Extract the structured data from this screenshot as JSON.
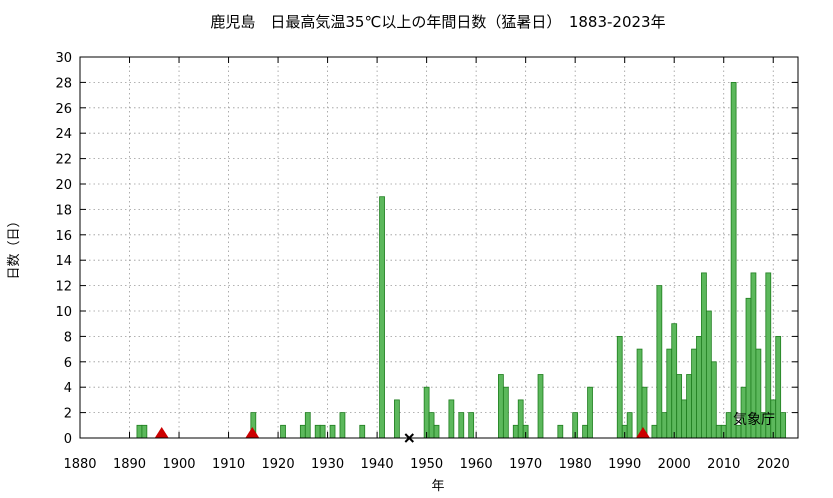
{
  "chart_data": {
    "type": "bar",
    "title": "鹿児島　日最高気温35℃以上の年間日数（猛暑日）　1883-2023年",
    "xlabel": "年",
    "ylabel": "日数（日）",
    "xlim": [
      1880,
      2025
    ],
    "ylim": [
      0,
      30
    ],
    "xticks": [
      "1880",
      "1890",
      "1900",
      "1910",
      "1920",
      "1930",
      "1940",
      "1950",
      "1960",
      "1970",
      "1980",
      "1990",
      "2000",
      "2010",
      "2020"
    ],
    "yticks": [
      "0",
      "2",
      "4",
      "6",
      "8",
      "10",
      "12",
      "14",
      "16",
      "18",
      "20",
      "22",
      "24",
      "26",
      "28",
      "30"
    ],
    "grid": true,
    "bar_color": "#5cb85c",
    "bar_edge_color": "#1e7d1e",
    "source_note": "気象庁",
    "x": [
      1892,
      1893,
      1915,
      1921,
      1925,
      1926,
      1928,
      1929,
      1931,
      1933,
      1937,
      1941,
      1944,
      1950,
      1951,
      1952,
      1955,
      1957,
      1959,
      1965,
      1966,
      1968,
      1969,
      1970,
      1973,
      1977,
      1980,
      1982,
      1983,
      1989,
      1990,
      1991,
      1993,
      1994,
      1996,
      1997,
      1998,
      1999,
      2000,
      2001,
      2002,
      2003,
      2004,
      2005,
      2006,
      2007,
      2008,
      2009,
      2010,
      2011,
      2012,
      2013,
      2014,
      2015,
      2016,
      2017,
      2018,
      2019,
      2020,
      2021,
      2022
    ],
    "values": [
      1,
      1,
      2,
      1,
      1,
      2,
      1,
      1,
      1,
      2,
      1,
      19,
      3,
      4,
      2,
      1,
      3,
      2,
      2,
      5,
      4,
      1,
      3,
      1,
      5,
      1,
      2,
      1,
      4,
      8,
      1,
      2,
      7,
      4,
      1,
      12,
      2,
      7,
      9,
      5,
      3,
      5,
      7,
      8,
      13,
      10,
      6,
      1,
      1,
      2,
      28,
      1,
      4,
      11,
      13,
      7,
      2,
      13,
      3,
      8,
      2
    ],
    "markers": [
      {
        "type": "triangle",
        "color": "#cc0000",
        "x": 1896.5,
        "y": 0
      },
      {
        "type": "triangle",
        "color": "#cc0000",
        "x": 1914.8,
        "y": 0
      },
      {
        "type": "cross",
        "color": "#000000",
        "x": 1946.5,
        "y": 0
      },
      {
        "type": "triangle",
        "color": "#cc0000",
        "x": 1993.7,
        "y": 0
      }
    ]
  }
}
